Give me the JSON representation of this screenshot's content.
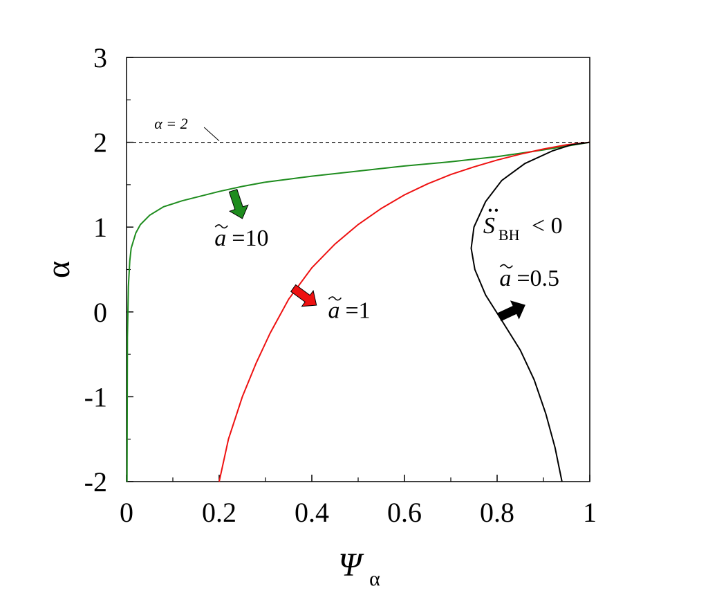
{
  "chart_data": {
    "type": "line",
    "xlabel": "Ψ",
    "xlabel_sub": "α",
    "ylabel": "α",
    "xlim": [
      0,
      1
    ],
    "ylim": [
      -2,
      3
    ],
    "x_ticks": [
      "0",
      "0.2",
      "0.4",
      "0.6",
      "0.8",
      "1"
    ],
    "y_ticks": [
      "-2",
      "-1",
      "0",
      "1",
      "2",
      "3"
    ],
    "x_tick_values": [
      0,
      0.2,
      0.4,
      0.6,
      0.8,
      1
    ],
    "y_tick_values": [
      -2,
      -1,
      0,
      1,
      2,
      3
    ],
    "grid": false,
    "reference_line": {
      "y": 2,
      "label": "α = 2",
      "style": "dashed"
    },
    "series": [
      {
        "label": "ã =10",
        "color": "#1e8c1e",
        "points": [
          [
            0.001,
            -2
          ],
          [
            0.002,
            -0.3
          ],
          [
            0.004,
            0.3
          ],
          [
            0.007,
            0.6
          ],
          [
            0.01,
            0.75
          ],
          [
            0.02,
            0.93
          ],
          [
            0.03,
            1.03
          ],
          [
            0.05,
            1.14
          ],
          [
            0.08,
            1.24
          ],
          [
            0.12,
            1.31
          ],
          [
            0.2,
            1.42
          ],
          [
            0.25,
            1.48
          ],
          [
            0.3,
            1.53
          ],
          [
            0.4,
            1.6
          ],
          [
            0.5,
            1.66
          ],
          [
            0.6,
            1.72
          ],
          [
            0.7,
            1.77
          ],
          [
            0.8,
            1.83
          ],
          [
            0.9,
            1.91
          ],
          [
            1.0,
            2.0
          ]
        ]
      },
      {
        "label": "ã =1",
        "color": "#ee1111",
        "points": [
          [
            0.2,
            -2
          ],
          [
            0.22,
            -1.5
          ],
          [
            0.25,
            -1.0
          ],
          [
            0.28,
            -0.6
          ],
          [
            0.31,
            -0.25
          ],
          [
            0.35,
            0.15
          ],
          [
            0.4,
            0.52
          ],
          [
            0.45,
            0.8
          ],
          [
            0.5,
            1.03
          ],
          [
            0.55,
            1.22
          ],
          [
            0.6,
            1.38
          ],
          [
            0.65,
            1.51
          ],
          [
            0.7,
            1.62
          ],
          [
            0.75,
            1.71
          ],
          [
            0.8,
            1.79
          ],
          [
            0.85,
            1.86
          ],
          [
            0.9,
            1.92
          ],
          [
            0.95,
            1.97
          ],
          [
            1.0,
            2.0
          ]
        ]
      },
      {
        "label": "ã =0.5",
        "color": "#000000",
        "points": [
          [
            0.94,
            -2
          ],
          [
            0.925,
            -1.6
          ],
          [
            0.905,
            -1.2
          ],
          [
            0.88,
            -0.8
          ],
          [
            0.85,
            -0.45
          ],
          [
            0.81,
            -0.1
          ],
          [
            0.775,
            0.2
          ],
          [
            0.752,
            0.5
          ],
          [
            0.744,
            0.75
          ],
          [
            0.75,
            1.0
          ],
          [
            0.775,
            1.3
          ],
          [
            0.81,
            1.55
          ],
          [
            0.86,
            1.75
          ],
          [
            0.92,
            1.9
          ],
          [
            0.96,
            1.97
          ],
          [
            1.0,
            2.0
          ]
        ]
      }
    ],
    "arrows": [
      {
        "series": "ã =10",
        "x": 0.23,
        "y": 1.43,
        "dx": 0.02,
        "dy": -0.33,
        "color": "#1e8c1e"
      },
      {
        "series": "ã =1",
        "x": 0.36,
        "y": 0.28,
        "dx": 0.05,
        "dy": -0.2,
        "color": "#ee1111"
      },
      {
        "series": "ã =0.5",
        "x": 0.805,
        "y": -0.06,
        "dx": 0.055,
        "dy": 0.14,
        "color": "#000000"
      }
    ],
    "annotations": {
      "curve_labels": [
        {
          "text": "=10",
          "series": "ã =10",
          "x": 0.19,
          "y": 0.78
        },
        {
          "text": "=1",
          "series": "ã =1",
          "x": 0.435,
          "y": -0.07
        },
        {
          "text": "=0.5",
          "series": "ã =0.5",
          "x": 0.805,
          "y": 0.31
        }
      ],
      "condition": {
        "main": "S",
        "sub": "BH",
        "tail": "< 0",
        "x": 0.77,
        "y": 0.93
      },
      "alpha_label": {
        "text": "α = 2",
        "x": 0.06,
        "y": 2.16
      }
    }
  }
}
